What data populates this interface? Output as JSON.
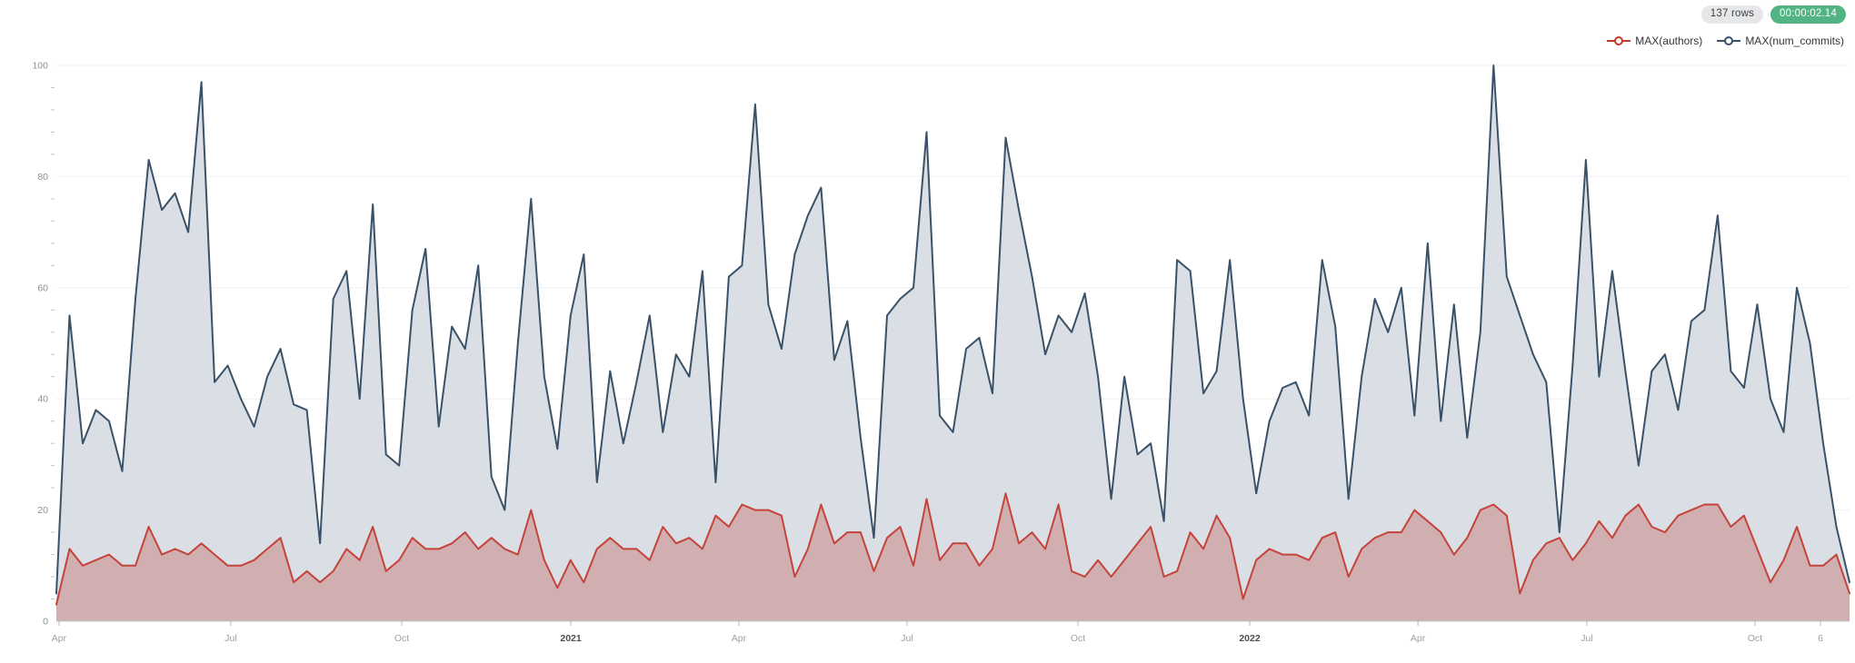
{
  "header": {
    "rows_badge": "137 rows",
    "timer_badge": "00:00:02.14"
  },
  "legend": [
    {
      "label": "MAX(authors)",
      "color": "#c0392b"
    },
    {
      "label": "MAX(num_commits)",
      "color": "#3a5168"
    }
  ],
  "colors": {
    "commits_line": "#3a5168",
    "commits_fill": "#d9dfe4",
    "authors_line": "#c5433a",
    "authors_fill": "rgba(193,62,53,0.30)",
    "grid_line": "#edf1f4",
    "axis_line": "#c3c9cf",
    "tick_mark": "#aeb4ba",
    "minor_tick": "#c0c4c8",
    "y_label": "#8a9099",
    "x_label": "#9aa0a6",
    "x_label_bold": "#4a4d50"
  },
  "chart_data": {
    "type": "area",
    "title": "",
    "xlabel": "",
    "ylabel": "",
    "ylim": [
      0,
      100
    ],
    "y_ticks": [
      0,
      20,
      40,
      60,
      80,
      100
    ],
    "y_minor_tick_step": 4,
    "grid": true,
    "legend_position": "top-right",
    "x_axis": {
      "kind": "time (weekly buckets, Apr 2020 - Nov 2022)",
      "ticks": [
        {
          "label": "Apr",
          "pos": 0.0015,
          "bold": false
        },
        {
          "label": "Jul",
          "pos": 0.0973,
          "bold": false
        },
        {
          "label": "Oct",
          "pos": 0.1926,
          "bold": false
        },
        {
          "label": "2021",
          "pos": 0.2869,
          "bold": true
        },
        {
          "label": "Apr",
          "pos": 0.3806,
          "bold": false
        },
        {
          "label": "Jul",
          "pos": 0.4744,
          "bold": false
        },
        {
          "label": "Oct",
          "pos": 0.5697,
          "bold": false
        },
        {
          "label": "2022",
          "pos": 0.6655,
          "bold": true
        },
        {
          "label": "Apr",
          "pos": 0.7593,
          "bold": false
        },
        {
          "label": "Jul",
          "pos": 0.8535,
          "bold": false
        },
        {
          "label": "Oct",
          "pos": 0.9473,
          "bold": false
        },
        {
          "label": "6",
          "pos": 0.9838,
          "bold": false
        }
      ]
    },
    "series": [
      {
        "name": "MAX(num_commits)",
        "values": [
          5,
          55,
          32,
          38,
          36,
          27,
          58,
          83,
          74,
          77,
          70,
          97,
          43,
          46,
          40,
          35,
          44,
          49,
          39,
          38,
          14,
          58,
          63,
          40,
          75,
          30,
          28,
          56,
          67,
          35,
          53,
          49,
          64,
          26,
          20,
          50,
          76,
          44,
          31,
          55,
          66,
          25,
          45,
          32,
          43,
          55,
          34,
          48,
          44,
          63,
          25,
          62,
          64,
          93,
          57,
          49,
          66,
          73,
          78,
          47,
          54,
          33,
          15,
          55,
          58,
          60,
          88,
          37,
          34,
          49,
          51,
          41,
          87,
          74,
          62,
          48,
          55,
          52,
          59,
          44,
          22,
          44,
          30,
          32,
          18,
          65,
          63,
          41,
          45,
          65,
          40,
          23,
          36,
          42,
          43,
          37,
          65,
          53,
          22,
          44,
          58,
          52,
          60,
          37,
          68,
          36,
          57,
          33,
          52,
          100,
          62,
          55,
          48,
          43,
          16,
          46,
          83,
          44,
          63,
          45,
          28,
          45,
          48,
          38,
          54,
          56,
          73,
          45,
          42,
          57,
          40,
          34,
          60,
          50,
          32,
          17,
          7
        ]
      },
      {
        "name": "MAX(authors)",
        "values": [
          3,
          13,
          10,
          11,
          12,
          10,
          10,
          17,
          12,
          13,
          12,
          14,
          12,
          10,
          10,
          11,
          13,
          15,
          7,
          9,
          7,
          9,
          13,
          11,
          17,
          9,
          11,
          15,
          13,
          13,
          14,
          16,
          13,
          15,
          13,
          12,
          20,
          11,
          6,
          11,
          7,
          13,
          15,
          13,
          13,
          11,
          17,
          14,
          15,
          13,
          19,
          17,
          21,
          20,
          20,
          19,
          8,
          13,
          21,
          14,
          16,
          16,
          9,
          15,
          17,
          10,
          22,
          11,
          14,
          14,
          10,
          13,
          23,
          14,
          16,
          13,
          21,
          9,
          8,
          11,
          8,
          11,
          14,
          17,
          8,
          9,
          16,
          13,
          19,
          15,
          4,
          11,
          13,
          12,
          12,
          11,
          15,
          16,
          8,
          13,
          15,
          16,
          16,
          20,
          18,
          16,
          12,
          15,
          20,
          21,
          19,
          5,
          11,
          14,
          15,
          11,
          14,
          18,
          15,
          19,
          21,
          17,
          16,
          19,
          20,
          21,
          21,
          17,
          19,
          13,
          7,
          11,
          17,
          10,
          10,
          12,
          5
        ]
      }
    ]
  }
}
